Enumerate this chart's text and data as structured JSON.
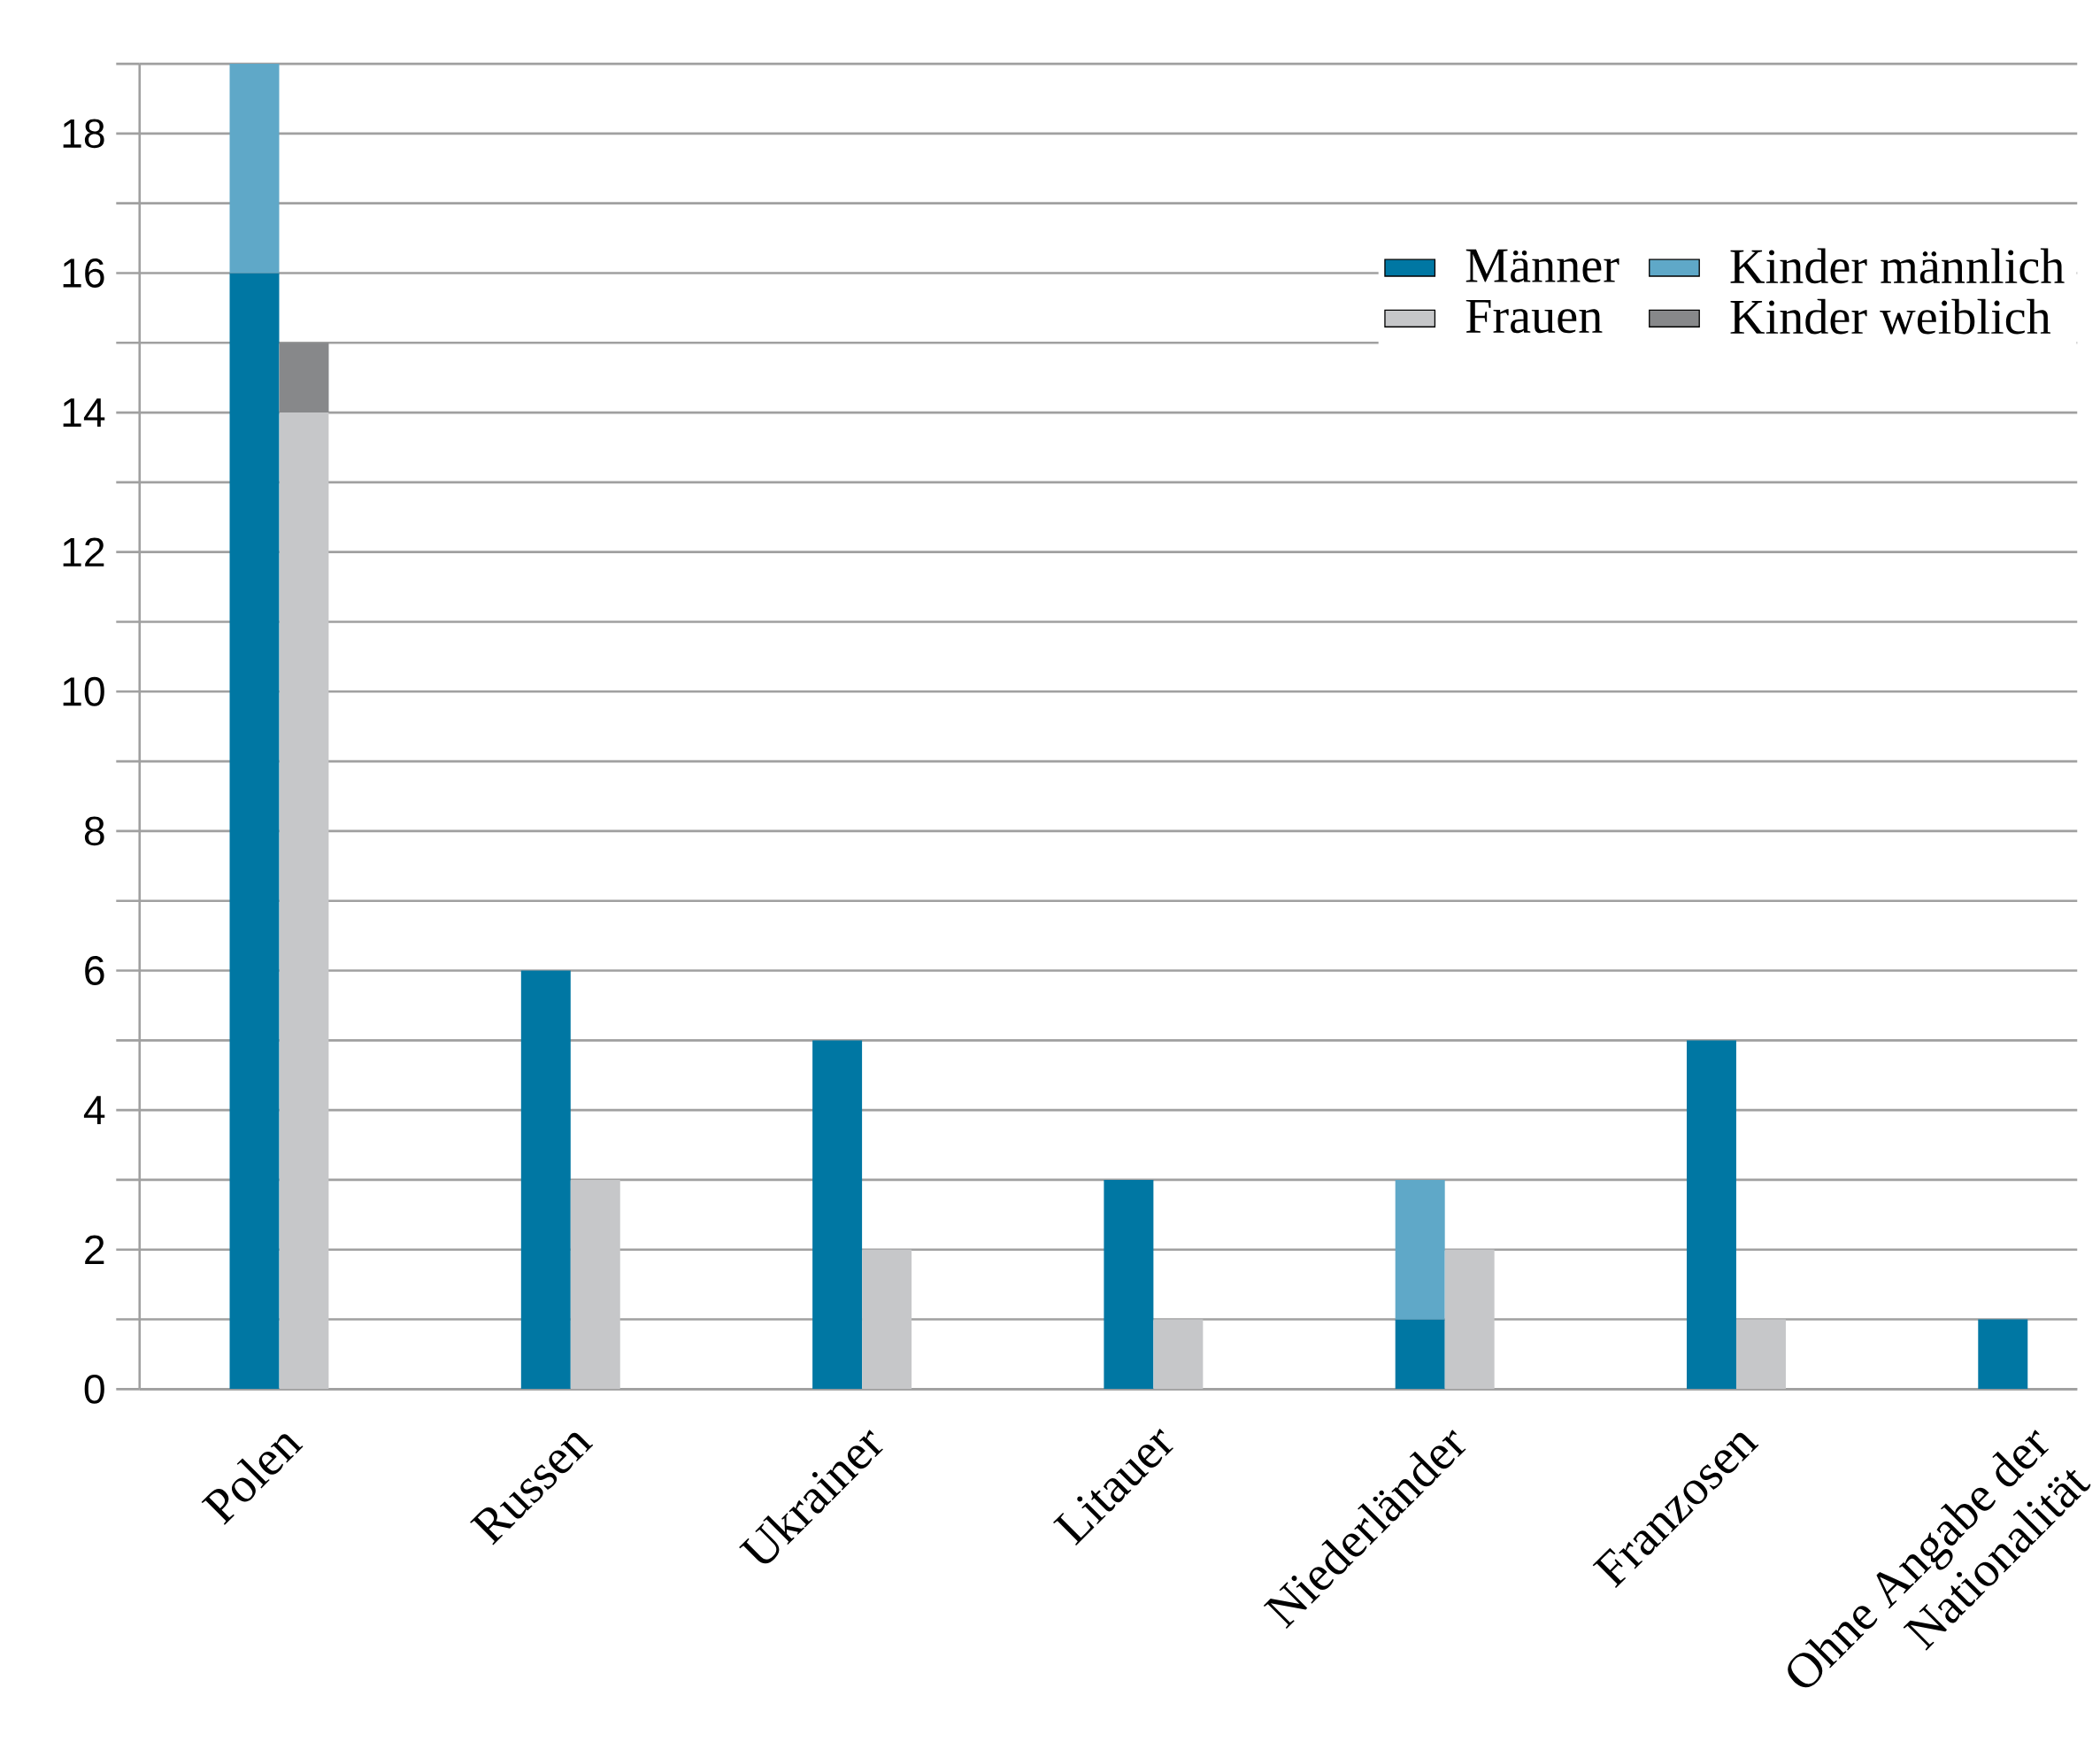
{
  "chart_data": {
    "type": "bar",
    "categories": [
      "Polen",
      "Russen",
      "Ukrainer",
      "Litauer",
      "Niederländer",
      "Franzosen",
      "Ohne Angabe der Nationalität"
    ],
    "series": [
      {
        "name": "Männer",
        "color": "#0077a3",
        "values": [
          16,
          6,
          5,
          3,
          1,
          5,
          1
        ]
      },
      {
        "name": "Kinder männlich",
        "color": "#5fa8c8",
        "values": [
          3,
          null,
          null,
          null,
          2,
          null,
          null
        ],
        "base": [
          16,
          null,
          null,
          null,
          1,
          null,
          null
        ]
      },
      {
        "name": "Frauen",
        "color": "#c6c7c9",
        "values": [
          14,
          3,
          2,
          1,
          2,
          1,
          null
        ]
      },
      {
        "name": "Kinder weiblich",
        "color": "#87888a",
        "values": [
          1,
          null,
          null,
          null,
          null,
          null,
          null
        ],
        "base": [
          14,
          null,
          null,
          null,
          null,
          null,
          null
        ]
      }
    ],
    "ylim": [
      0,
      19
    ],
    "yticks": [
      0,
      {
        "value": 1,
        "label": null
      },
      2,
      {
        "value": 3,
        "label": null
      },
      4,
      {
        "value": 5,
        "label": null
      },
      6,
      {
        "value": 7,
        "label": null
      },
      8,
      {
        "value": 9,
        "label": null
      },
      10,
      {
        "value": 11,
        "label": null
      },
      12,
      {
        "value": 13,
        "label": null
      },
      14,
      {
        "value": 15,
        "label": null
      },
      16,
      {
        "value": 17,
        "label": null
      },
      18,
      {
        "value": 19,
        "label": null
      }
    ],
    "grid": "y",
    "legend": "top right"
  }
}
